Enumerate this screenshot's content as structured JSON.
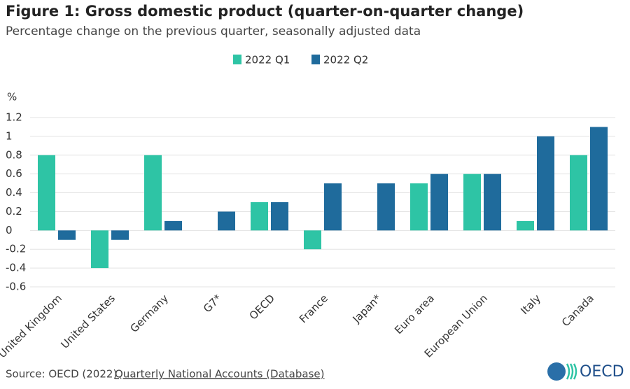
{
  "chart_data": {
    "type": "bar",
    "title": "Figure 1: Gross domestic product (quarter-on-quarter change)",
    "subtitle": "Percentage change on the previous quarter, seasonally adjusted data",
    "y_label": "%",
    "categories": [
      "United Kingdom",
      "United States",
      "Germany",
      "G7*",
      "OECD",
      "France",
      "Japan*",
      "Euro area",
      "European Union",
      "Italy",
      "Canada"
    ],
    "series": [
      {
        "name": "2022 Q1",
        "color": "#2ec4a5",
        "values": [
          0.8,
          -0.4,
          0.8,
          0,
          0.3,
          -0.2,
          0,
          0.5,
          0.6,
          0.1,
          0.8
        ]
      },
      {
        "name": "2022 Q2",
        "color": "#1f6b9c",
        "values": [
          -0.1,
          -0.1,
          0.1,
          0.2,
          0.3,
          0.5,
          0.5,
          0.6,
          0.6,
          1,
          1.1
        ]
      }
    ],
    "ylim": [
      -0.6,
      1.2
    ],
    "yticks": [
      -0.6,
      -0.4,
      -0.2,
      0,
      0.2,
      0.4,
      0.6,
      0.8,
      1,
      1.2
    ],
    "grid": true
  },
  "footer": {
    "source_prefix": "Source: OECD (2022)",
    "source_link": "Quarterly National Accounts (Database)",
    "logo": "OECD"
  }
}
